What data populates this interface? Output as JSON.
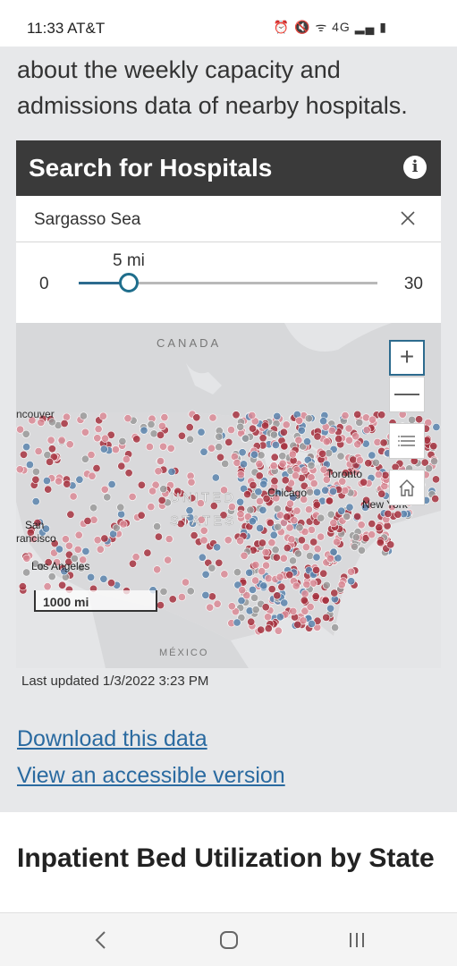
{
  "status_bar": {
    "time": "11:33 AT&T",
    "icons": "⏰ 🔇 ᯤ 4G ▂▄ ▮"
  },
  "intro_text": "about the weekly capacity and admissions data of nearby hospitals.",
  "widget": {
    "title": "Search for Hospitals",
    "info_icon": "info-icon",
    "search": {
      "value": "Sargasso Sea",
      "placeholder": "Search"
    },
    "slider": {
      "min_label": "0",
      "max_label": "30",
      "value_label": "5 mi",
      "min": 0,
      "max": 30,
      "value": 5
    }
  },
  "map": {
    "labels": {
      "canada": "CANADA",
      "vancouver": "ncouver",
      "united": "UNITED",
      "states": "STATES",
      "chicago": "Chicago",
      "toronto": "Toronto",
      "new_york": "New York",
      "san": "San",
      "francisco": "rancisco",
      "los_angeles": "Los Angeles",
      "mexico": "MÉXICO"
    },
    "scale_label": "1000 mi",
    "controls": {
      "zoom_in": "+",
      "zoom_out": "—"
    },
    "colors": {
      "red": "#a6323f",
      "pink": "#d98a95",
      "blue": "#5b84ad",
      "gray": "#9a9a9a"
    }
  },
  "last_updated": "Last updated 1/3/2022 3:23 PM",
  "links": {
    "download": "Download this data",
    "accessible": "View an accessible version"
  },
  "section2": {
    "title": "Inpatient Bed Utilization by State"
  },
  "nav": {
    "back": "back-icon",
    "home": "home-icon",
    "recents": "recents-icon"
  }
}
